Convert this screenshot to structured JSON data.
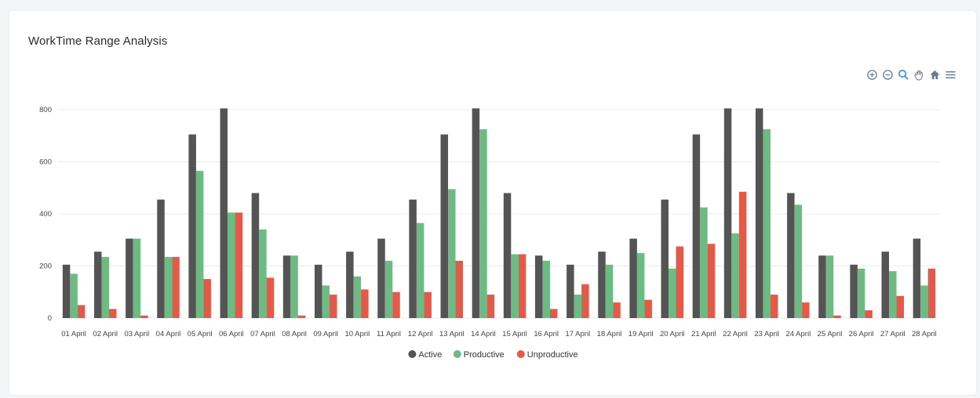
{
  "card": {
    "title": "WorkTime Range Analysis"
  },
  "toolbar": {
    "icons": [
      "zoom-in-icon",
      "zoom-out-icon",
      "zoom-selection-icon",
      "pan-icon",
      "reset-home-icon",
      "menu-icon"
    ]
  },
  "colors": {
    "active": "#545454",
    "productive": "#6dba82",
    "unproductive": "#e25a49",
    "grid": "#ececec",
    "icon": "#6a7c94"
  },
  "chart_data": {
    "type": "bar",
    "title": "",
    "xlabel": "",
    "ylabel": "",
    "ylim": [
      0,
      800
    ],
    "yticks": [
      0,
      200,
      400,
      600,
      800
    ],
    "grid": true,
    "legend_position": "bottom-center",
    "categories": [
      "01 April",
      "02 April",
      "03 April",
      "04 April",
      "05 April",
      "06 April",
      "07 April",
      "08 April",
      "09 April",
      "10 April",
      "11 April",
      "12 April",
      "13 April",
      "14 April",
      "15 April",
      "16 April",
      "17 April",
      "18 April",
      "19 April",
      "20 April",
      "21 April",
      "22 April",
      "23 April",
      "24 April",
      "25 April",
      "26 April",
      "27 April",
      "28 April"
    ],
    "series": [
      {
        "name": "Active",
        "color": "#545454",
        "values": [
          205,
          255,
          305,
          455,
          705,
          805,
          480,
          240,
          205,
          255,
          305,
          455,
          705,
          805,
          480,
          240,
          205,
          255,
          305,
          455,
          705,
          805,
          805,
          480,
          240,
          205,
          255,
          305
        ]
      },
      {
        "name": "Productive",
        "color": "#6dba82",
        "values": [
          170,
          235,
          305,
          235,
          565,
          405,
          340,
          240,
          125,
          160,
          220,
          365,
          495,
          725,
          245,
          220,
          90,
          205,
          250,
          190,
          425,
          325,
          725,
          435,
          240,
          190,
          180,
          125
        ]
      },
      {
        "name": "Unproductive",
        "color": "#e25a49",
        "values": [
          50,
          35,
          10,
          235,
          150,
          405,
          155,
          10,
          90,
          110,
          100,
          100,
          220,
          90,
          245,
          35,
          130,
          60,
          70,
          275,
          285,
          485,
          90,
          60,
          10,
          30,
          85,
          190
        ]
      }
    ]
  }
}
